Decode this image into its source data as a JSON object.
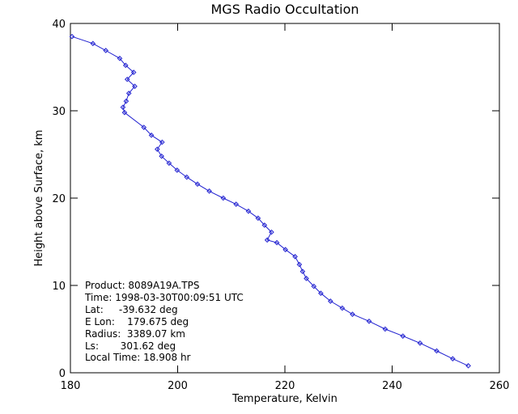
{
  "colors": {
    "line": "#2020d0",
    "axis": "#000000",
    "background": "#ffffff"
  },
  "chart_data": {
    "type": "line",
    "title": "MGS Radio Occultation",
    "xlabel": "Temperature, Kelvin",
    "ylabel": "Height above Surface, km",
    "xlim": [
      180,
      260
    ],
    "ylim": [
      0,
      40
    ],
    "xticks": [
      180,
      200,
      220,
      240,
      260
    ],
    "yticks": [
      0,
      10,
      20,
      30,
      40
    ],
    "grid": false,
    "marker": "diamond",
    "series": [
      {
        "name": "temperature profile",
        "x": [
          254.2,
          251.3,
          248.3,
          245.2,
          242.0,
          238.7,
          235.7,
          232.6,
          230.7,
          228.5,
          226.7,
          225.4,
          224.0,
          223.3,
          222.7,
          221.9,
          220.1,
          218.5,
          216.7,
          217.5,
          216.2,
          215.0,
          213.2,
          210.9,
          208.5,
          205.9,
          203.7,
          201.7,
          199.9,
          198.4,
          197.0,
          196.2,
          197.1,
          195.1,
          193.7,
          190.1,
          189.8,
          190.4,
          190.9,
          192.0,
          190.6,
          191.8,
          190.3,
          189.2,
          186.6,
          184.2,
          180.3
        ],
        "y": [
          0.8,
          1.6,
          2.5,
          3.4,
          4.2,
          5.0,
          5.9,
          6.7,
          7.4,
          8.2,
          9.1,
          9.9,
          10.8,
          11.6,
          12.4,
          13.3,
          14.1,
          14.9,
          15.2,
          16.1,
          16.9,
          17.7,
          18.5,
          19.3,
          20.0,
          20.8,
          21.6,
          22.4,
          23.2,
          24.0,
          24.8,
          25.6,
          26.4,
          27.2,
          28.1,
          29.8,
          30.4,
          31.1,
          32.0,
          32.8,
          33.6,
          34.4,
          35.2,
          36.0,
          36.9,
          37.7,
          38.5
        ]
      }
    ],
    "annotation_lines": [
      "Product: 8089A19A.TPS",
      "Time: 1998-03-30T00:09:51 UTC",
      "Lat:     -39.632 deg",
      "E Lon:    179.675 deg",
      "Radius:  3389.07 km",
      "Ls:       301.62 deg",
      "Local Time: 18.908 hr"
    ]
  }
}
